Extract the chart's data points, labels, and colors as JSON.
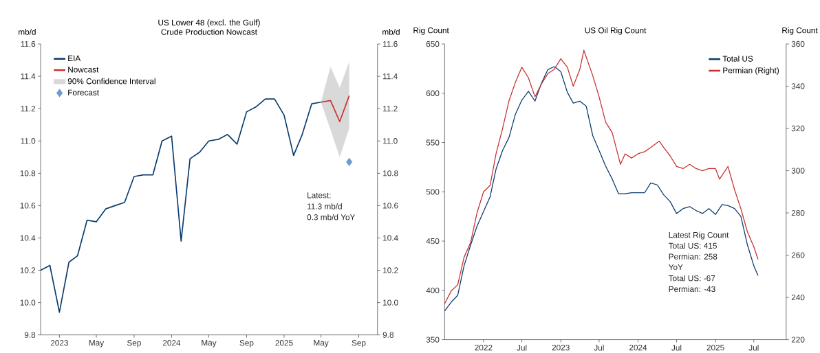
{
  "chart_data": [
    {
      "type": "line",
      "title": "US Lower 48 (excl. the Gulf)",
      "subtitle": "Crude Production Nowcast",
      "ylabel": "mb/d",
      "y2label": "mb/d",
      "xlim": [
        "2022-11-01",
        "2025-11-01"
      ],
      "xticks": [
        {
          "value": "2023-01-01",
          "label": "2023"
        },
        {
          "value": "2023-05-01",
          "label": "May"
        },
        {
          "value": "2023-09-01",
          "label": "Sep"
        },
        {
          "value": "2024-01-01",
          "label": "2024"
        },
        {
          "value": "2024-05-01",
          "label": "May"
        },
        {
          "value": "2024-09-01",
          "label": "Sep"
        },
        {
          "value": "2025-01-01",
          "label": "2025"
        },
        {
          "value": "2025-05-01",
          "label": "May"
        },
        {
          "value": "2025-09-01",
          "label": "Sep"
        }
      ],
      "ylim": [
        9.8,
        11.6
      ],
      "yticks": [
        9.8,
        {
          "value": 10,
          "label": "10.0"
        },
        10.2,
        10.4,
        10.6,
        10.8,
        {
          "value": 11,
          "label": "11.0"
        },
        11.2,
        11.4,
        11.6
      ],
      "y2lim": [
        9.8,
        11.6
      ],
      "y2ticks": [
        9.8,
        {
          "value": 10,
          "label": "10.0"
        },
        10.2,
        10.4,
        10.6,
        10.8,
        {
          "value": 11,
          "label": "11.0"
        },
        11.2,
        11.4,
        11.6
      ],
      "legend": "top left",
      "annotations": [
        "90% Confidence Interval",
        "Latest:",
        "11.3 mb/d",
        "0.3 mb/d YoY"
      ],
      "series": [
        {
          "name": "EIA",
          "color": "#0b3c6e",
          "x": [
            "2022-11-01",
            "2022-12-01",
            "2023-01-01",
            "2023-02-01",
            "2023-03-01",
            "2023-04-01",
            "2023-05-01",
            "2023-06-01",
            "2023-07-01",
            "2023-08-01",
            "2023-09-01",
            "2023-10-01",
            "2023-11-01",
            "2023-12-01",
            "2024-01-01",
            "2024-02-01",
            "2024-03-01",
            "2024-04-01",
            "2024-05-01",
            "2024-06-01",
            "2024-07-01",
            "2024-08-01",
            "2024-09-01",
            "2024-10-01",
            "2024-11-01",
            "2024-12-01",
            "2025-01-01",
            "2025-02-01",
            "2025-03-01",
            "2025-04-01",
            "2025-05-01"
          ],
          "values": [
            10.2,
            10.23,
            9.94,
            10.25,
            10.29,
            10.51,
            10.5,
            10.58,
            10.6,
            10.62,
            10.78,
            10.79,
            10.79,
            11.0,
            11.03,
            10.38,
            10.89,
            10.93,
            11.0,
            11.01,
            11.04,
            10.98,
            11.18,
            11.21,
            11.26,
            11.26,
            11.16,
            10.91,
            11.04,
            11.23,
            11.24
          ]
        },
        {
          "name": "Nowcast",
          "color": "#c8312f",
          "x": [
            "2025-05-01",
            "2025-06-01",
            "2025-07-01",
            "2025-08-01"
          ],
          "values": [
            11.24,
            11.25,
            11.12,
            11.28
          ],
          "lower": [
            11.24,
            11.07,
            10.9,
            11.08
          ],
          "upper": [
            11.24,
            11.46,
            11.33,
            11.49
          ]
        },
        {
          "name": "Forecast",
          "type": "scatter",
          "marker": "diamond",
          "color": "#6f9bd1",
          "x": [
            "2025-08-01"
          ],
          "values": [
            10.87
          ]
        }
      ]
    },
    {
      "type": "line",
      "title": "US Oil Rig Count",
      "ylabel": "Rig Count",
      "y2label": "Rig Count",
      "xlim": [
        "2021-07-01",
        "2025-12-01"
      ],
      "xticks": [
        {
          "value": "2022-01-01",
          "label": "2022"
        },
        {
          "value": "2022-07-01",
          "label": "Jul"
        },
        {
          "value": "2023-01-01",
          "label": "2023"
        },
        {
          "value": "2023-07-01",
          "label": "Jul"
        },
        {
          "value": "2024-01-01",
          "label": "2024"
        },
        {
          "value": "2024-07-01",
          "label": "Jul"
        },
        {
          "value": "2025-01-01",
          "label": "2025"
        },
        {
          "value": "2025-07-01",
          "label": "Jul"
        }
      ],
      "ylim": [
        350,
        650
      ],
      "yticks": [
        350,
        400,
        450,
        500,
        550,
        600,
        650
      ],
      "y2lim": [
        220,
        360
      ],
      "y2ticks": [
        220,
        240,
        260,
        280,
        300,
        320,
        340,
        360
      ],
      "legend": "top right",
      "annotations": [
        "Latest Rig Count",
        "Total US: 415",
        "Permian: 258",
        "YoY",
        "Total US: -67",
        "Permian: -43"
      ],
      "series": [
        {
          "name": "Total US",
          "color": "#0b3c6e",
          "x": [
            "2021-07-01",
            "2021-08-01",
            "2021-09-01",
            "2021-10-01",
            "2021-11-01",
            "2021-12-01",
            "2022-01-01",
            "2022-02-01",
            "2022-03-01",
            "2022-04-01",
            "2022-05-01",
            "2022-06-01",
            "2022-07-01",
            "2022-08-01",
            "2022-09-01",
            "2022-10-01",
            "2022-11-01",
            "2022-12-01",
            "2023-01-01",
            "2023-02-01",
            "2023-03-01",
            "2023-04-01",
            "2023-05-01",
            "2023-06-01",
            "2023-07-01",
            "2023-08-01",
            "2023-09-01",
            "2023-10-01",
            "2023-11-01",
            "2023-12-01",
            "2024-01-01",
            "2024-02-01",
            "2024-03-01",
            "2024-04-01",
            "2024-05-01",
            "2024-06-01",
            "2024-07-01",
            "2024-08-01",
            "2024-09-01",
            "2024-10-01",
            "2024-11-01",
            "2024-12-01",
            "2025-01-01",
            "2025-02-01",
            "2025-03-01",
            "2025-04-01",
            "2025-05-01",
            "2025-06-01",
            "2025-07-01",
            "2025-07-21"
          ],
          "values": [
            379,
            388,
            395,
            425,
            446,
            465,
            480,
            495,
            523,
            542,
            555,
            579,
            593,
            602,
            592,
            610,
            624,
            627,
            622,
            601,
            590,
            592,
            587,
            557,
            542,
            526,
            513,
            498,
            498,
            499,
            499,
            499,
            509,
            507,
            497,
            490,
            478,
            483,
            485,
            481,
            478,
            483,
            477,
            487,
            486,
            483,
            475,
            446,
            425,
            415
          ]
        },
        {
          "name": "Permian (Right)",
          "axis": "y2",
          "color": "#c8312f",
          "x": [
            "2021-07-01",
            "2021-08-01",
            "2021-09-01",
            "2021-10-01",
            "2021-11-01",
            "2021-12-01",
            "2022-01-01",
            "2022-02-01",
            "2022-03-01",
            "2022-04-01",
            "2022-05-01",
            "2022-06-01",
            "2022-07-01",
            "2022-08-01",
            "2022-09-01",
            "2022-10-01",
            "2022-11-01",
            "2022-12-01",
            "2023-01-01",
            "2023-02-01",
            "2023-03-01",
            "2023-04-01",
            "2023-04-20",
            "2023-06-01",
            "2023-07-01",
            "2023-08-01",
            "2023-09-01",
            "2023-10-10",
            "2023-11-01",
            "2023-12-01",
            "2024-01-01",
            "2024-02-01",
            "2024-03-01",
            "2024-04-10",
            "2024-05-01",
            "2024-06-01",
            "2024-07-01",
            "2024-08-01",
            "2024-09-01",
            "2024-10-01",
            "2024-11-01",
            "2024-12-01",
            "2025-01-01",
            "2025-01-20",
            "2025-03-01",
            "2025-04-01",
            "2025-05-01",
            "2025-06-01",
            "2025-07-01",
            "2025-07-21"
          ],
          "values": [
            237,
            243,
            246,
            259,
            266,
            280,
            290,
            293,
            308,
            320,
            333,
            342,
            349,
            344,
            335,
            341,
            346,
            348,
            353,
            349,
            340,
            348,
            357,
            345,
            335,
            323,
            318,
            303,
            308,
            306,
            308,
            309,
            311,
            314,
            311,
            307,
            302,
            301,
            303,
            301,
            300,
            301,
            301,
            296,
            302,
            291,
            282,
            271,
            264,
            258
          ]
        }
      ]
    }
  ]
}
